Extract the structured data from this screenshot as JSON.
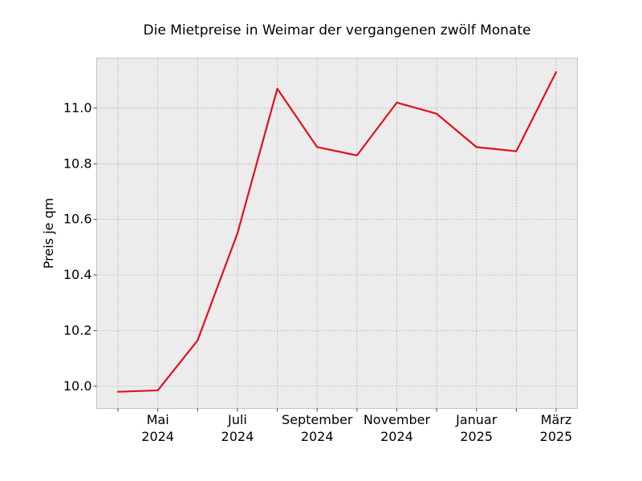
{
  "chart_data": {
    "type": "line",
    "title": "Die Mietpreise in Weimar der vergangenen zwölf Monate",
    "xlabel": "",
    "ylabel": "Preis je qm",
    "x": [
      "2024-04",
      "2024-05",
      "2024-06",
      "2024-07",
      "2024-08",
      "2024-09",
      "2024-10",
      "2024-11",
      "2024-12",
      "2025-01",
      "2025-02",
      "2025-03"
    ],
    "series": [
      {
        "values": [
          9.98,
          9.985,
          10.165,
          10.55,
          11.07,
          10.86,
          10.83,
          11.02,
          10.98,
          10.86,
          10.845,
          11.13
        ],
        "color": "#e0101c"
      }
    ],
    "ylim": [
      9.92,
      11.18
    ],
    "yticks": [
      10.0,
      10.2,
      10.4,
      10.6,
      10.8,
      11.0
    ],
    "ytick_labels": [
      "10.0",
      "10.2",
      "10.4",
      "10.6",
      "10.8",
      "11.0"
    ],
    "xticks": [
      {
        "index": 1,
        "line1": "Mai",
        "line2": "2024"
      },
      {
        "index": 3,
        "line1": "Juli",
        "line2": "2024"
      },
      {
        "index": 5,
        "line1": "September",
        "line2": "2024"
      },
      {
        "index": 7,
        "line1": "November",
        "line2": "2024"
      },
      {
        "index": 9,
        "line1": "Januar",
        "line2": "2025"
      },
      {
        "index": 11,
        "line1": "März",
        "line2": "2025"
      }
    ],
    "grid": true,
    "background_color": "#ececec",
    "grid_color": "#b0b0b0"
  }
}
